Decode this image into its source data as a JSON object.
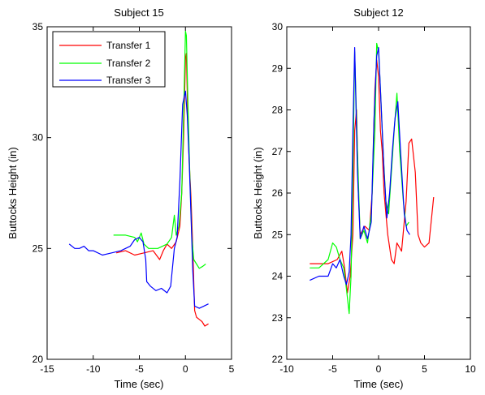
{
  "chart_data": [
    {
      "type": "line",
      "title": "Subject 15",
      "xlabel": "Time (sec)",
      "ylabel": "Buttocks Height (in)",
      "xlim": [
        -15,
        5
      ],
      "ylim": [
        20,
        35
      ],
      "xticks": [
        "-15",
        "-10",
        "-5",
        "0",
        "5"
      ],
      "xtick_values": [
        -15,
        -10,
        -5,
        0,
        5
      ],
      "yticks": [
        "20",
        "25",
        "30",
        "35"
      ],
      "ytick_values": [
        20,
        25,
        30,
        35
      ],
      "grid": false,
      "legend": {
        "location": "top-left",
        "entries": [
          "Transfer 1",
          "Transfer 2",
          "Transfer 3"
        ]
      },
      "series": [
        {
          "name": "Transfer 1",
          "color": "#ff0000",
          "x": [
            -7.5,
            -6.5,
            -5.5,
            -4.5,
            -3.5,
            -2.8,
            -2.4,
            -2.0,
            -1.5,
            -1.0,
            -0.6,
            -0.4,
            -0.2,
            0.0,
            0.1,
            0.25,
            0.4,
            0.6,
            0.8,
            0.9,
            1.0,
            1.2,
            1.5,
            1.8,
            2.1,
            2.5
          ],
          "y": [
            24.8,
            24.9,
            24.7,
            24.8,
            24.9,
            24.5,
            24.9,
            25.2,
            25.0,
            25.3,
            26.0,
            27.5,
            30.0,
            33.6,
            33.8,
            31.0,
            29.0,
            27.3,
            25.0,
            23.5,
            22.2,
            21.9,
            21.8,
            21.7,
            21.5,
            21.6
          ]
        },
        {
          "name": "Transfer 2",
          "color": "#00ff00",
          "x": [
            -7.8,
            -6.5,
            -5.5,
            -5.2,
            -4.8,
            -4.5,
            -4.0,
            -3.0,
            -2.0,
            -1.5,
            -1.2,
            -1.0,
            -0.7,
            -0.4,
            -0.2,
            0.0,
            0.1,
            0.3,
            0.5,
            0.7,
            0.9,
            1.2,
            1.5,
            1.9,
            2.2
          ],
          "y": [
            25.6,
            25.6,
            25.5,
            25.3,
            25.7,
            25.2,
            25.0,
            25.0,
            25.2,
            25.5,
            26.5,
            25.6,
            26.0,
            27.5,
            31.0,
            34.8,
            34.6,
            31.0,
            28.0,
            25.5,
            24.5,
            24.3,
            24.1,
            24.2,
            24.3
          ]
        },
        {
          "name": "Transfer 3",
          "color": "#0000ff",
          "x": [
            -12.6,
            -12.0,
            -11.5,
            -11.0,
            -10.5,
            -10.0,
            -9.0,
            -8.0,
            -7.0,
            -6.0,
            -5.5,
            -5.0,
            -4.6,
            -4.3,
            -4.2,
            -3.8,
            -3.2,
            -2.6,
            -2.0,
            -1.6,
            -1.2,
            -0.9,
            -0.6,
            -0.3,
            0.0,
            0.2,
            0.4,
            0.6,
            0.8,
            1.0,
            1.5,
            2.0,
            2.5
          ],
          "y": [
            25.2,
            25.0,
            25.0,
            25.1,
            24.9,
            24.9,
            24.7,
            24.8,
            24.9,
            25.1,
            25.4,
            25.5,
            25.3,
            24.5,
            23.5,
            23.3,
            23.1,
            23.2,
            23.0,
            23.3,
            25.0,
            25.5,
            28.0,
            31.5,
            32.1,
            31.0,
            29.0,
            26.5,
            24.0,
            22.4,
            22.3,
            22.4,
            22.5
          ]
        }
      ]
    },
    {
      "type": "line",
      "title": "Subject 12",
      "xlabel": "Time (sec)",
      "ylabel": "Buttocks Height (in)",
      "xlim": [
        -10,
        10
      ],
      "ylim": [
        22,
        30
      ],
      "xticks": [
        "-10",
        "-5",
        "0",
        "5",
        "10"
      ],
      "xtick_values": [
        -10,
        -5,
        0,
        5,
        10
      ],
      "yticks": [
        "22",
        "23",
        "24",
        "25",
        "26",
        "27",
        "28",
        "29",
        "30"
      ],
      "ytick_values": [
        22,
        23,
        24,
        25,
        26,
        27,
        28,
        29,
        30
      ],
      "grid": false,
      "series": [
        {
          "name": "Transfer 1",
          "color": "#ff0000",
          "x": [
            -7.5,
            -6.5,
            -5.5,
            -4.5,
            -4.0,
            -3.7,
            -3.4,
            -3.1,
            -2.8,
            -2.6,
            -2.4,
            -2.2,
            -2.0,
            -1.5,
            -1.0,
            -0.7,
            -0.4,
            -0.2,
            0.0,
            0.2,
            0.4,
            0.6,
            0.8,
            1.0,
            1.4,
            1.7,
            2.0,
            2.5,
            3.0,
            3.3,
            3.6,
            4.0,
            4.3,
            4.6,
            5.0,
            5.5,
            6.0
          ],
          "y": [
            24.3,
            24.3,
            24.3,
            24.4,
            24.6,
            24.2,
            23.6,
            24.0,
            25.0,
            27.5,
            28.0,
            26.0,
            25.0,
            25.2,
            25.1,
            26.0,
            28.5,
            29.2,
            28.8,
            27.5,
            27.0,
            26.0,
            25.5,
            25.0,
            24.4,
            24.3,
            24.8,
            24.6,
            25.8,
            27.2,
            27.3,
            26.5,
            25.0,
            24.8,
            24.7,
            24.8,
            25.9
          ]
        },
        {
          "name": "Transfer 2",
          "color": "#00ff00",
          "x": [
            -7.5,
            -6.5,
            -5.5,
            -5.0,
            -4.6,
            -4.2,
            -3.8,
            -3.5,
            -3.2,
            -3.0,
            -2.8,
            -2.6,
            -2.3,
            -2.0,
            -1.6,
            -1.2,
            -0.8,
            -0.4,
            -0.2,
            0.0,
            0.2,
            0.5,
            0.8,
            1.1,
            1.4,
            1.7,
            2.0,
            2.3,
            2.7,
            3.0,
            3.3
          ],
          "y": [
            24.2,
            24.2,
            24.4,
            24.8,
            24.7,
            24.4,
            24.2,
            23.7,
            23.1,
            24.0,
            26.5,
            29.4,
            27.0,
            24.9,
            25.1,
            24.8,
            25.5,
            27.5,
            29.6,
            29.4,
            28.5,
            27.0,
            25.8,
            25.5,
            26.5,
            27.5,
            28.4,
            27.0,
            25.8,
            25.2,
            25.3
          ]
        },
        {
          "name": "Transfer 3",
          "color": "#0000ff",
          "x": [
            -7.5,
            -6.5,
            -5.5,
            -5.0,
            -4.6,
            -4.2,
            -3.8,
            -3.5,
            -3.2,
            -3.0,
            -2.8,
            -2.6,
            -2.3,
            -2.0,
            -1.6,
            -1.2,
            -0.8,
            -0.5,
            -0.2,
            0.0,
            0.3,
            0.6,
            0.9,
            1.2,
            1.5,
            1.8,
            2.1,
            2.4,
            2.8,
            3.1,
            3.4
          ],
          "y": [
            23.9,
            24.0,
            24.0,
            24.3,
            24.2,
            24.4,
            24.0,
            23.8,
            24.1,
            25.0,
            27.5,
            29.5,
            26.5,
            24.9,
            25.2,
            24.9,
            25.3,
            27.8,
            29.3,
            29.5,
            28.0,
            26.5,
            25.4,
            26.0,
            27.0,
            27.8,
            28.2,
            27.0,
            25.5,
            25.1,
            25.0
          ]
        }
      ]
    }
  ]
}
